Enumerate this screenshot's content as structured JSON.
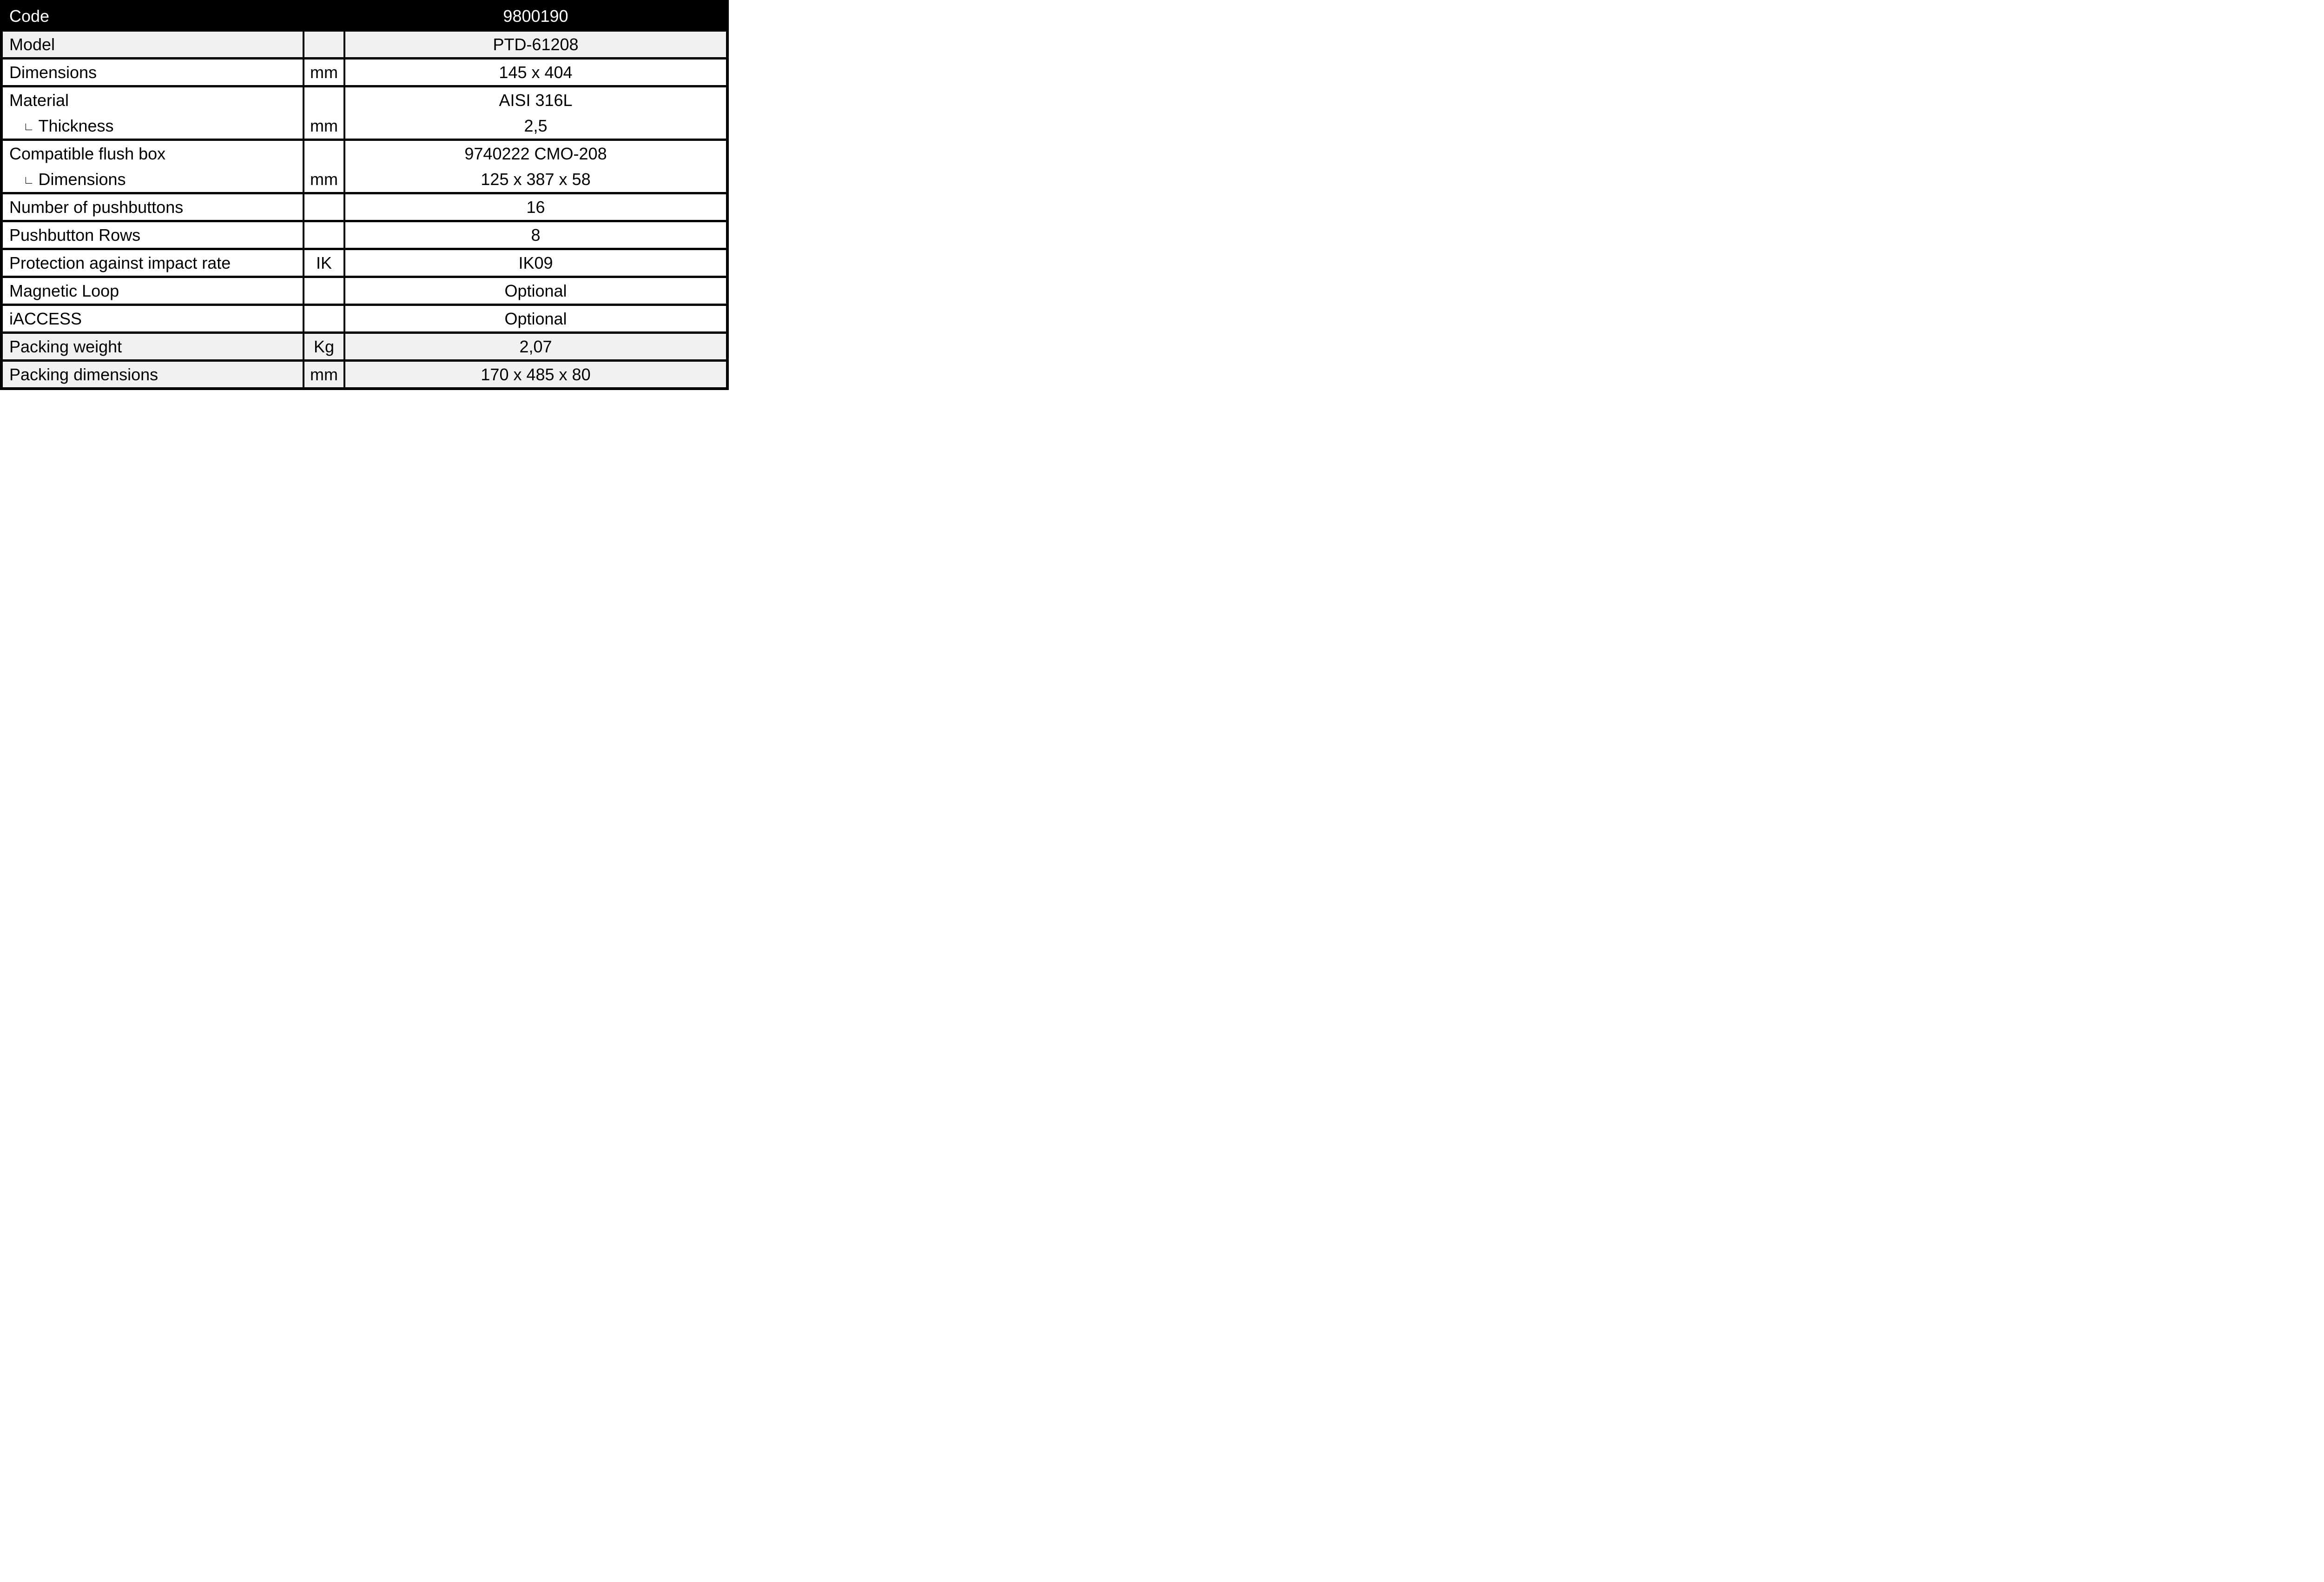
{
  "colors": {
    "header_bg": "#000000",
    "header_text": "#ffffff",
    "shaded_row_bg": "#f1f1f1",
    "border": "#000000",
    "text": "#000000"
  },
  "indent_symbol": "∟",
  "table": {
    "header": {
      "label": "Code",
      "unit": "",
      "value": "9800190"
    },
    "rows": [
      {
        "label": "Model",
        "unit": "",
        "value": "PTD-61208"
      },
      {
        "label": "Dimensions",
        "unit": "mm",
        "value": "145 x 404"
      },
      {
        "label1": "Material",
        "unit1": "",
        "value1": "AISI 316L",
        "label2": "Thickness",
        "unit2": "mm",
        "value2": "2,5"
      },
      {
        "label1": "Compatible flush box",
        "unit1": "",
        "value1": "9740222 CMO-208",
        "label2": "Dimensions",
        "unit2": "mm",
        "value2": "125 x 387 x 58"
      },
      {
        "label": "Number of pushbuttons",
        "unit": "",
        "value": "16"
      },
      {
        "label": "Pushbutton Rows",
        "unit": "",
        "value": "8"
      },
      {
        "label": "Protection against impact rate",
        "unit": "IK",
        "value": "IK09"
      },
      {
        "label": "Magnetic Loop",
        "unit": "",
        "value": "Optional"
      },
      {
        "label": "iACCESS",
        "unit": "",
        "value": "Optional"
      },
      {
        "label": "Packing weight",
        "unit": "Kg",
        "value": "2,07"
      },
      {
        "label": "Packing dimensions",
        "unit": "mm",
        "value": "170 x 485 x 80"
      }
    ]
  }
}
